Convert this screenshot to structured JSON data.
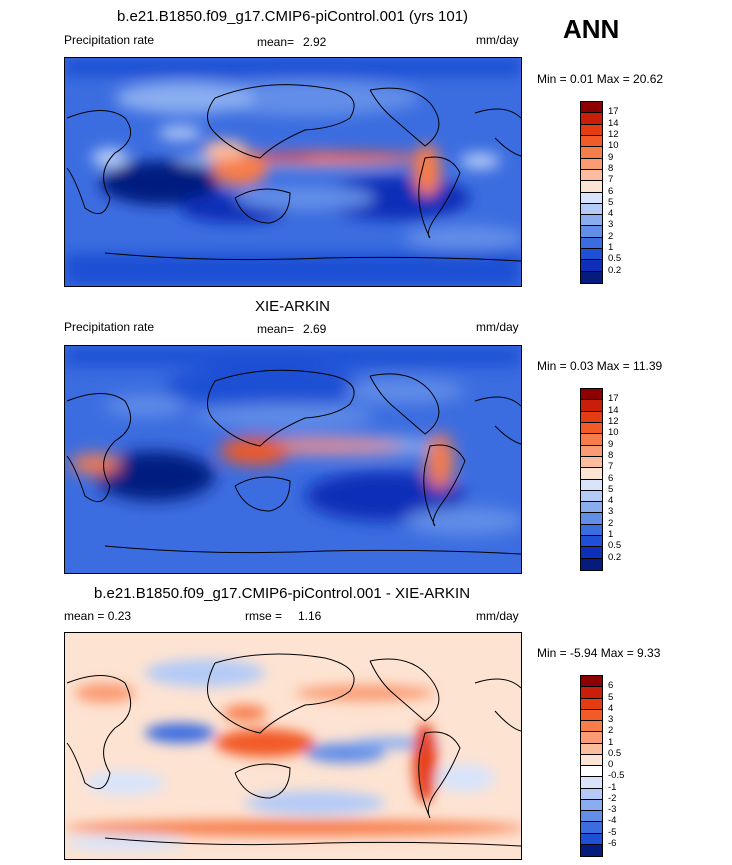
{
  "season": "ANN",
  "panels": [
    {
      "title": "b.e21.B1850.f09_g17.CMIP6-piControl.001 (yrs 101)",
      "left_label": "Precipitation rate",
      "stat_label": "mean=",
      "stat_value": "2.92",
      "units": "mm/day",
      "minmax": "Min =   0.01 Max =  20.62",
      "colorbar": {
        "labels": [
          "17",
          "14",
          "12",
          "10",
          "9",
          "8",
          "7",
          "6",
          "5",
          "4",
          "3",
          "2",
          "1",
          "0.5",
          "0.2"
        ],
        "colors": [
          "#8b0000",
          "#c81e0a",
          "#e63c14",
          "#f25a28",
          "#f77d4b",
          "#fa9b73",
          "#fcbc9e",
          "#fde3d2",
          "#d8e4fb",
          "#b4cbf7",
          "#8aadf0",
          "#628ee8",
          "#3c6de0",
          "#1f4fd4",
          "#0e2fb8",
          "#061b80"
        ]
      }
    },
    {
      "title": "XIE-ARKIN",
      "left_label": "Precipitation rate",
      "stat_label": "mean=",
      "stat_value": "2.69",
      "units": "mm/day",
      "minmax": "Min =   0.03 Max =  11.39",
      "colorbar": {
        "labels": [
          "17",
          "14",
          "12",
          "10",
          "9",
          "8",
          "7",
          "6",
          "5",
          "4",
          "3",
          "2",
          "1",
          "0.5",
          "0.2"
        ],
        "colors": [
          "#8b0000",
          "#c81e0a",
          "#e63c14",
          "#f25a28",
          "#f77d4b",
          "#fa9b73",
          "#fcbc9e",
          "#fde3d2",
          "#d8e4fb",
          "#b4cbf7",
          "#8aadf0",
          "#628ee8",
          "#3c6de0",
          "#1f4fd4",
          "#0e2fb8",
          "#061b80"
        ]
      }
    },
    {
      "title": "b.e21.B1850.f09_g17.CMIP6-piControl.001 - XIE-ARKIN",
      "left_label": "mean =   0.23",
      "stat_label": "rmse =",
      "stat_value": "1.16",
      "units": "mm/day",
      "minmax": "Min =  -5.94 Max =   9.33",
      "colorbar": {
        "labels": [
          "6",
          "5",
          "4",
          "3",
          "2",
          "1",
          "0.5",
          "0",
          "-0.5",
          "-1",
          "-2",
          "-3",
          "-4",
          "-5",
          "-6"
        ],
        "colors": [
          "#8b0000",
          "#c81e0a",
          "#e63c14",
          "#f25a28",
          "#f77d4b",
          "#fa9b73",
          "#fcbc9e",
          "#fde3d2",
          "#ffffff",
          "#d8e4fb",
          "#b4cbf7",
          "#8aadf0",
          "#628ee8",
          "#3c6de0",
          "#1f4fd4",
          "#061b80"
        ]
      }
    }
  ]
}
